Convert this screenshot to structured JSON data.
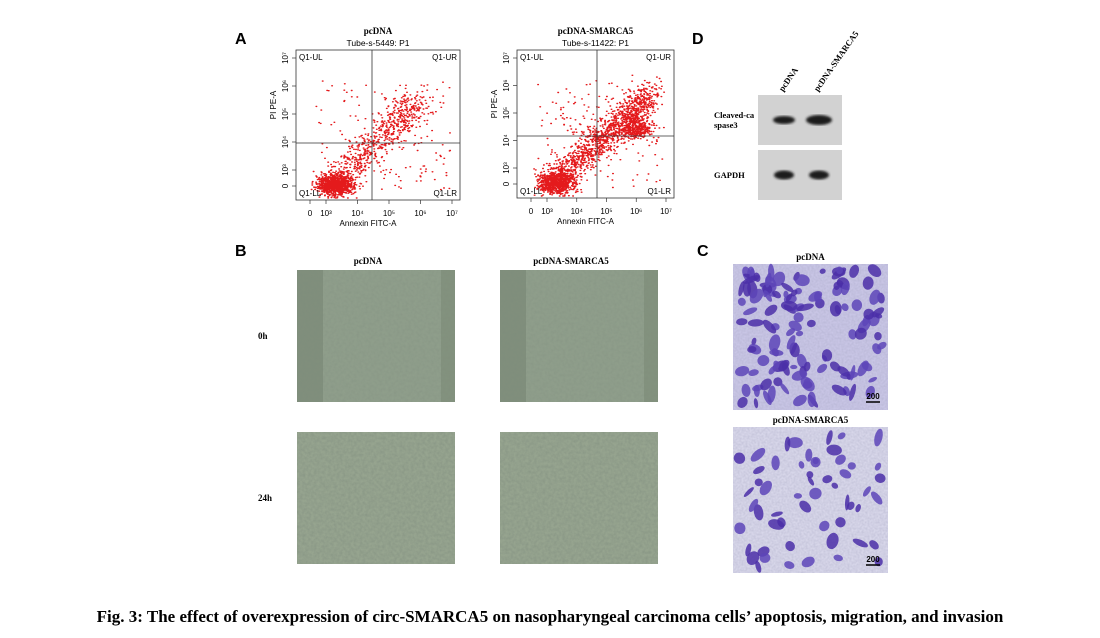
{
  "figure": {
    "caption": "Fig. 3: The effect of overexpression of circ-SMARCA5 on nasopharyngeal carcinoma cells’ apoptosis, migration, and invasion",
    "panel_a": {
      "label": "A",
      "plots": [
        {
          "title": "pcDNA",
          "subtitle": "Tube-s-5449: P1",
          "quadrants": [
            "Q1-UL",
            "Q1-UR",
            "Q1-LL",
            "Q1-LR"
          ],
          "x_label": "Annexin FITC-A",
          "y_label": "PI PE-A",
          "x_ticks": [
            "0",
            "10³",
            "10⁴",
            "10⁵",
            "10⁶",
            "10⁷"
          ],
          "y_ticks": [
            "0",
            "10³",
            "10⁴",
            "10⁵",
            "10⁶",
            "10⁷"
          ]
        },
        {
          "title": "pcDNA-SMARCA5",
          "subtitle": "Tube-s-11422: P1",
          "quadrants": [
            "Q1-UL",
            "Q1-UR",
            "Q1-LL",
            "Q1-LR"
          ],
          "x_label": "Annexin FITC-A",
          "y_label": "PI PE-A",
          "x_ticks": [
            "0",
            "10³",
            "10⁴",
            "10⁵",
            "10⁶",
            "10⁷"
          ],
          "y_ticks": [
            "0",
            "10³",
            "10⁴",
            "10⁵",
            "10⁶",
            "10⁷"
          ]
        }
      ]
    },
    "panel_b": {
      "label": "B",
      "columns": [
        "pcDNA",
        "pcDNA-SMARCA5"
      ],
      "rows": [
        "0h",
        "24h"
      ]
    },
    "panel_c": {
      "label": "C",
      "images": [
        {
          "title": "pcDNA",
          "scale": "200"
        },
        {
          "title": "pcDNA-SMARCA5",
          "scale": "200"
        }
      ]
    },
    "panel_d": {
      "label": "D",
      "lanes": [
        "pcDNA",
        "pcDNA-SMARCA5"
      ],
      "bands": [
        {
          "lines": [
            "Cleaved-ca",
            "spase3"
          ]
        },
        {
          "lines": [
            "GAPDH"
          ]
        }
      ]
    }
  }
}
